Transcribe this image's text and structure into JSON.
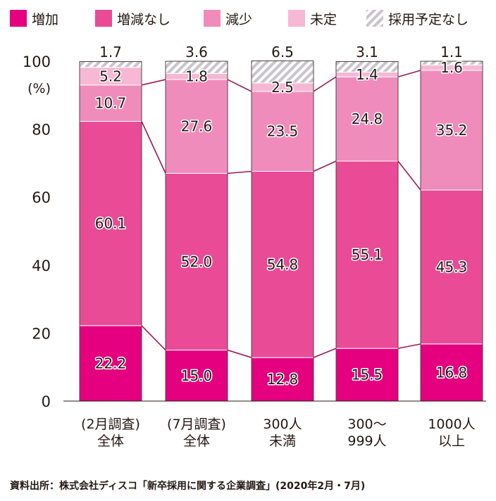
{
  "chart_data": {
    "type": "bar",
    "stacked": true,
    "unit_label": "(%)",
    "ylim": [
      0,
      100
    ],
    "yticks": [
      "0",
      "20",
      "40",
      "60",
      "80",
      "100"
    ],
    "categories": [
      [
        "(2月調査)",
        "全体"
      ],
      [
        "(7月調査)",
        "全体"
      ],
      [
        "300人",
        "未満"
      ],
      [
        "300〜",
        "999人"
      ],
      [
        "1000人",
        "以上"
      ]
    ],
    "series": [
      {
        "name": "増加",
        "color": "#e4007f",
        "pattern": "solid",
        "values": [
          22.2,
          15.0,
          12.8,
          15.5,
          16.8
        ],
        "labels": [
          "22.2",
          "15.0",
          "12.8",
          "15.5",
          "16.8"
        ]
      },
      {
        "name": "増減なし",
        "color": "#e94b97",
        "pattern": "solid",
        "values": [
          60.1,
          52.0,
          54.8,
          55.1,
          45.3
        ],
        "labels": [
          "60.1",
          "52.0",
          "54.8",
          "55.1",
          "45.3"
        ]
      },
      {
        "name": "減少",
        "color": "#f08cbb",
        "pattern": "solid",
        "values": [
          10.7,
          27.6,
          23.5,
          24.8,
          35.2
        ],
        "labels": [
          "10.7",
          "27.6",
          "23.5",
          "24.8",
          "35.2"
        ]
      },
      {
        "name": "未定",
        "color": "#f6b8d5",
        "pattern": "solid",
        "values": [
          5.2,
          1.8,
          2.5,
          1.4,
          1.6
        ],
        "labels": [
          "5.2",
          "1.8",
          "2.5",
          "1.4",
          "1.6"
        ]
      },
      {
        "name": "採用予定なし",
        "color": "#c9c3cc",
        "pattern": "hatched",
        "values": [
          1.7,
          3.6,
          6.5,
          3.1,
          1.1
        ],
        "labels": [
          "1.7",
          "3.6",
          "6.5",
          "3.1",
          "1.1"
        ]
      }
    ],
    "connector_color": "#9b1a5a",
    "legend_position": "top",
    "source": "資料出所：株式会社ディスコ「新卒採用に関する企業調査」(2020年2月・7月)"
  }
}
